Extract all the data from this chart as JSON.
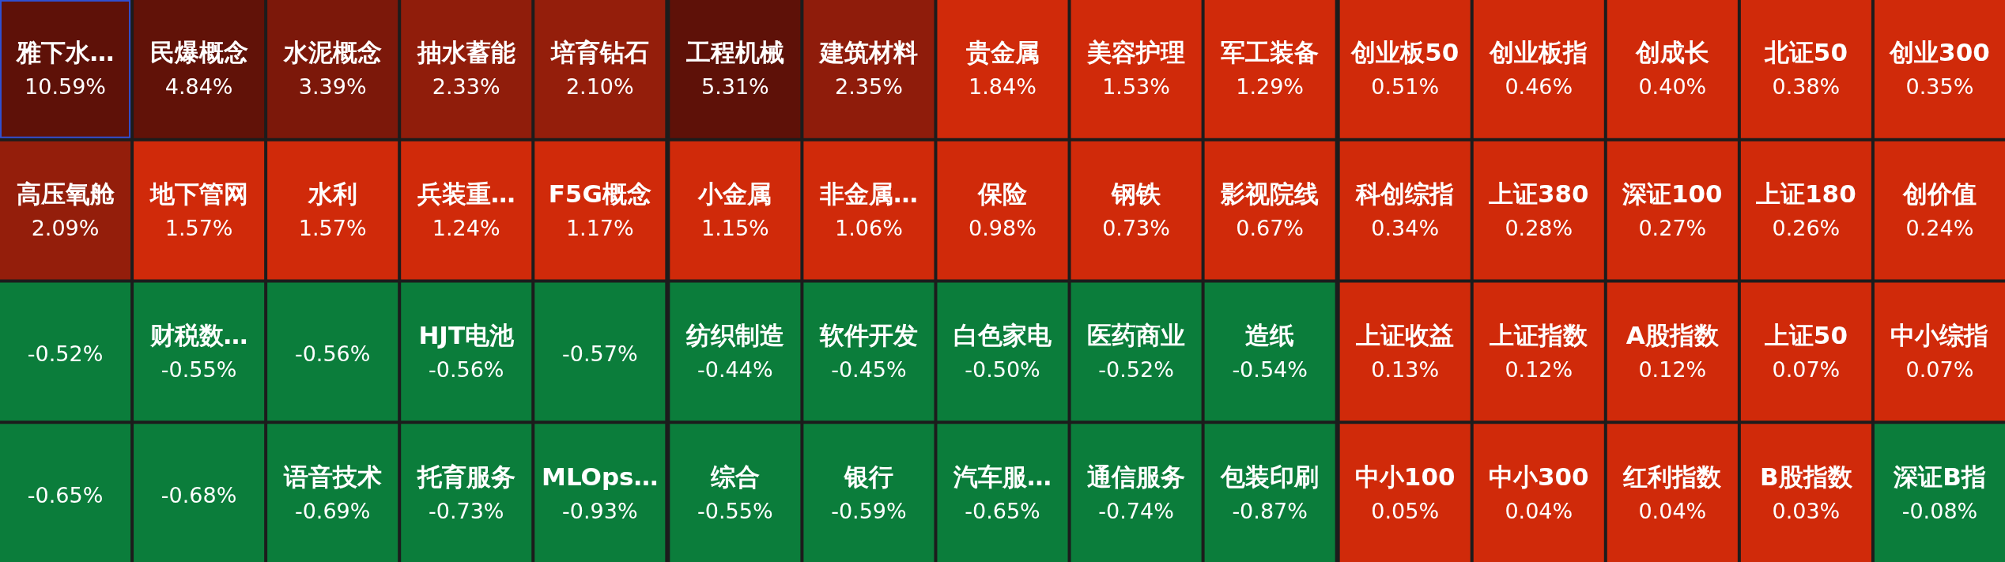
{
  "chart_data": [
    {
      "type": "other",
      "categories": [
        "雅下水…",
        "民爆概念",
        "水泥概念",
        "抽水蓄能",
        "培育钻石",
        "高压氧舱",
        "地下管网",
        "水利",
        "兵装重…",
        "F5G概念",
        null,
        "财税数…",
        null,
        "HJT电池",
        null,
        null,
        null,
        "语音技术",
        "托育服务",
        "MLOps…"
      ],
      "values": [
        10.59,
        4.84,
        3.39,
        2.33,
        2.1,
        2.09,
        1.57,
        1.57,
        1.24,
        1.17,
        -0.52,
        -0.55,
        -0.56,
        -0.56,
        -0.57,
        -0.65,
        -0.68,
        -0.69,
        -0.73,
        -0.93
      ],
      "value_labels": [
        "10.59%",
        "4.84%",
        "3.39%",
        "2.33%",
        "2.10%",
        "2.09%",
        "1.57%",
        "1.57%",
        "1.24%",
        "1.17%",
        "-0.52%",
        "-0.55%",
        "-0.56%",
        "-0.56%",
        "-0.57%",
        "-0.65%",
        "-0.68%",
        "-0.69%",
        "-0.73%",
        "-0.93%"
      ]
    },
    {
      "type": "other",
      "categories": [
        "工程机械",
        "建筑材料",
        "贵金属",
        "美容护理",
        "军工装备",
        "小金属",
        "非金属…",
        "保险",
        "钢铁",
        "影视院线",
        "纺织制造",
        "软件开发",
        "白色家电",
        "医药商业",
        "造纸",
        "综合",
        "银行",
        "汽车服…",
        "通信服务",
        "包装印刷"
      ],
      "values": [
        5.31,
        2.35,
        1.84,
        1.53,
        1.29,
        1.15,
        1.06,
        0.98,
        0.73,
        0.67,
        -0.44,
        -0.45,
        -0.5,
        -0.52,
        -0.54,
        -0.55,
        -0.59,
        -0.65,
        -0.74,
        -0.87
      ],
      "value_labels": [
        "5.31%",
        "2.35%",
        "1.84%",
        "1.53%",
        "1.29%",
        "1.15%",
        "1.06%",
        "0.98%",
        "0.73%",
        "0.67%",
        "-0.44%",
        "-0.45%",
        "-0.50%",
        "-0.52%",
        "-0.54%",
        "-0.55%",
        "-0.59%",
        "-0.65%",
        "-0.74%",
        "-0.87%"
      ]
    },
    {
      "type": "other",
      "categories": [
        "创业板50",
        "创业板指",
        "创成长",
        "北证50",
        "创业300",
        "科创综指",
        "上证380",
        "深证100",
        "上证180",
        "创价值",
        "上证收益",
        "上证指数",
        "A股指数",
        "上证50",
        "中小综指",
        "中小100",
        "中小300",
        "红利指数",
        "B股指数",
        "深证B指"
      ],
      "values": [
        0.51,
        0.46,
        0.4,
        0.38,
        0.35,
        0.34,
        0.28,
        0.27,
        0.26,
        0.24,
        0.13,
        0.12,
        0.12,
        0.07,
        0.07,
        0.05,
        0.04,
        0.04,
        0.03,
        -0.08
      ],
      "value_labels": [
        "0.51%",
        "0.46%",
        "0.40%",
        "0.38%",
        "0.35%",
        "0.34%",
        "0.28%",
        "0.27%",
        "0.26%",
        "0.24%",
        "0.13%",
        "0.12%",
        "0.12%",
        "0.07%",
        "0.07%",
        "0.05%",
        "0.04%",
        "0.04%",
        "0.03%",
        "-0.08%"
      ]
    }
  ]
}
